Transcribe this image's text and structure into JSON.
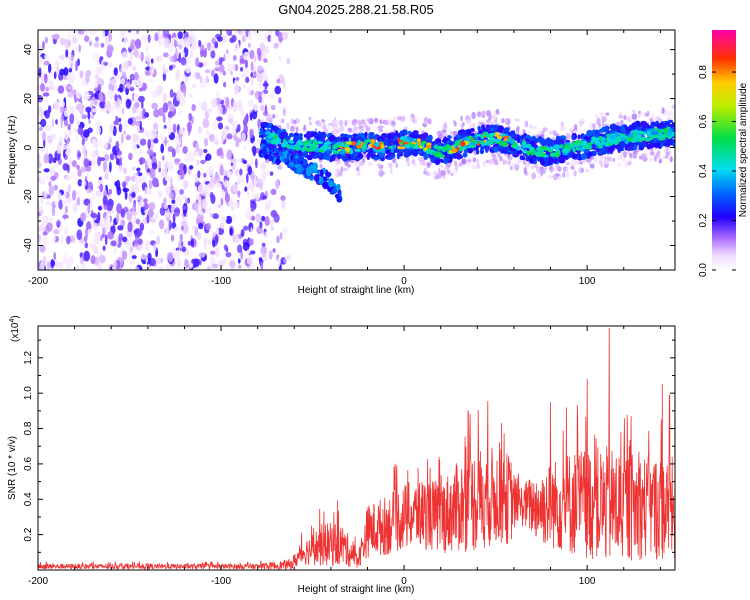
{
  "title": "GN04.2025.288.21.58.R05",
  "chart_data": [
    {
      "type": "heatmap",
      "xlabel": "Height of straight line (km)",
      "ylabel": "Frequency (Hz)",
      "xlim": [
        -200,
        148
      ],
      "ylim": [
        -50,
        48
      ],
      "xticks": [
        -200,
        -100,
        0,
        100
      ],
      "yticks": [
        -40,
        -20,
        0,
        20,
        40
      ],
      "colorbar": {
        "label": "Normalized spectral amplitude",
        "range": [
          0,
          0.97
        ],
        "ticks": [
          0.0,
          0.2,
          0.4,
          0.6,
          0.8
        ]
      },
      "noise_region_x": [
        -200,
        -75
      ],
      "ridge": [
        {
          "x": -78,
          "f": 6
        },
        {
          "x": -70,
          "f": 3
        },
        {
          "x": -60,
          "f": 0
        },
        {
          "x": -50,
          "f": 1
        },
        {
          "x": -40,
          "f": 0
        },
        {
          "x": -30,
          "f": 0
        },
        {
          "x": -20,
          "f": 1
        },
        {
          "x": -10,
          "f": 0
        },
        {
          "x": 0,
          "f": 2
        },
        {
          "x": 10,
          "f": 1
        },
        {
          "x": 20,
          "f": -2
        },
        {
          "x": 30,
          "f": 1
        },
        {
          "x": 40,
          "f": 3
        },
        {
          "x": 50,
          "f": 4
        },
        {
          "x": 60,
          "f": 2
        },
        {
          "x": 70,
          "f": -1
        },
        {
          "x": 80,
          "f": -2
        },
        {
          "x": 90,
          "f": 0
        },
        {
          "x": 100,
          "f": 1
        },
        {
          "x": 110,
          "f": 3
        },
        {
          "x": 120,
          "f": 4
        },
        {
          "x": 130,
          "f": 5
        },
        {
          "x": 148,
          "f": 6
        }
      ],
      "branch": [
        {
          "x": -78,
          "f": 0
        },
        {
          "x": -65,
          "f": -4
        },
        {
          "x": -52,
          "f": -9
        },
        {
          "x": -42,
          "f": -13
        },
        {
          "x": -35,
          "f": -20
        }
      ]
    },
    {
      "type": "line",
      "xlabel": "Height of straight line (km)",
      "ylabel": "SNR (10 * v/v)",
      "yscale_label": "(x10",
      "yscale_exp": "4",
      "yscale_close": ")",
      "xlim": [
        -200,
        148
      ],
      "ylim": [
        0,
        1.38
      ],
      "xticks": [
        -200,
        -100,
        0,
        100
      ],
      "yticks": [
        0.2,
        0.4,
        0.6,
        0.8,
        1.0,
        1.2
      ],
      "ytick_labels": [
        "0.2",
        "0.4",
        "0.6",
        "0.8",
        "1.0",
        "1.2"
      ],
      "color": "#ee3333",
      "envelope": [
        {
          "x": -200,
          "mean": 0.02,
          "amp": 0.015
        },
        {
          "x": -80,
          "mean": 0.02,
          "amp": 0.015
        },
        {
          "x": -62,
          "mean": 0.03,
          "amp": 0.03
        },
        {
          "x": -55,
          "mean": 0.1,
          "amp": 0.07
        },
        {
          "x": -45,
          "mean": 0.14,
          "amp": 0.12
        },
        {
          "x": -35,
          "mean": 0.15,
          "amp": 0.13
        },
        {
          "x": -25,
          "mean": 0.06,
          "amp": 0.05
        },
        {
          "x": -20,
          "mean": 0.22,
          "amp": 0.15
        },
        {
          "x": -10,
          "mean": 0.25,
          "amp": 0.17
        },
        {
          "x": 0,
          "mean": 0.3,
          "amp": 0.19
        },
        {
          "x": 10,
          "mean": 0.32,
          "amp": 0.2
        },
        {
          "x": 20,
          "mean": 0.3,
          "amp": 0.21
        },
        {
          "x": 30,
          "mean": 0.36,
          "amp": 0.26
        },
        {
          "x": 40,
          "mean": 0.4,
          "amp": 0.3
        },
        {
          "x": 50,
          "mean": 0.42,
          "amp": 0.28
        },
        {
          "x": 58,
          "mean": 0.4,
          "amp": 0.26
        },
        {
          "x": 62,
          "mean": 0.37,
          "amp": 0.1
        },
        {
          "x": 75,
          "mean": 0.36,
          "amp": 0.22
        },
        {
          "x": 90,
          "mean": 0.38,
          "amp": 0.3
        },
        {
          "x": 100,
          "mean": 0.38,
          "amp": 0.32
        },
        {
          "x": 115,
          "mean": 0.36,
          "amp": 0.34
        },
        {
          "x": 130,
          "mean": 0.36,
          "amp": 0.3
        },
        {
          "x": 148,
          "mean": 0.34,
          "amp": 0.3
        }
      ],
      "peaks": [
        {
          "x": 112,
          "y": 1.37
        },
        {
          "x": 100,
          "y": 1.08
        },
        {
          "x": 141,
          "y": 1.05
        },
        {
          "x": 35,
          "y": 0.9
        },
        {
          "x": 80,
          "y": 0.95
        },
        {
          "x": 145,
          "y": 0.99
        }
      ]
    }
  ]
}
